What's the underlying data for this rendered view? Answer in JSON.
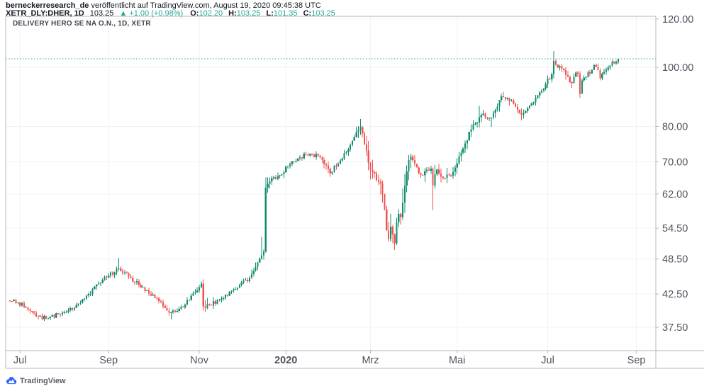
{
  "attribution": {
    "username": "berneckerresearch_de",
    "suffix": " veröffentlicht auf TradingView.com, August 19, 2020 09:45:38 UTC"
  },
  "quote": {
    "symbol": "XETR_DLY:DHER, 1D",
    "last": "103.25",
    "arrow": "▲",
    "change": "+1.00 (+0.98%)",
    "open_label": "O:",
    "open": "102.20",
    "high_label": "H:",
    "high": "103.25",
    "low_label": "L:",
    "low": "101.35",
    "close_label": "C:",
    "close": "103.25"
  },
  "legend": "DELIVERY HERO SE NA O.N., 1D, XETR",
  "footer": {
    "brand": "TradingView"
  },
  "chart_data": {
    "type": "candlestick",
    "title": "DELIVERY HERO SE NA O.N., 1D, XETR",
    "instrument": "DELIVERY HERO SE NA O.N.",
    "exchange": "XETR",
    "interval": "1D",
    "scale": "log",
    "ylim": [
      34.3,
      121.2
    ],
    "grid": true,
    "price_line_value": 103.25,
    "price_ticks": [
      120,
      100,
      80,
      70,
      62,
      54.5,
      48.5,
      42.5,
      37.5
    ],
    "month_ticks": [
      {
        "label": "Jul",
        "day": 5
      },
      {
        "label": "Sep",
        "day": 49
      },
      {
        "label": "Nov",
        "day": 94
      },
      {
        "label": "2020",
        "day": 137,
        "bold": true
      },
      {
        "label": "Mrz",
        "day": 179
      },
      {
        "label": "Mai",
        "day": 222
      },
      {
        "label": "Jul",
        "day": 267
      },
      {
        "label": "Sep",
        "day": 311
      }
    ],
    "colors": {
      "up": "#108c6e",
      "down": "#ef5350",
      "price_line": "#26a69a",
      "grid": "#f0f2f6",
      "border": "#b2b5be",
      "axis_text": "#50535e",
      "logo_blue": "#2962ff"
    },
    "weekly_ohlc": {
      "columns": [
        "week_start",
        "open",
        "high",
        "low",
        "close",
        "day_closes_optional"
      ],
      "rows": [
        [
          "2019-06-24",
          41.5,
          41.8,
          40.9,
          41.2
        ],
        [
          "2019-07-01",
          41.2,
          41.4,
          39.8,
          40.1
        ],
        [
          "2019-07-08",
          40.1,
          40.3,
          38.6,
          39.0
        ],
        [
          "2019-07-15",
          39.0,
          39.5,
          38.4,
          38.8
        ],
        [
          "2019-07-22",
          38.8,
          39.6,
          38.5,
          39.4
        ],
        [
          "2019-07-29",
          39.4,
          40.3,
          39.0,
          40.0
        ],
        [
          "2019-08-05",
          40.0,
          41.2,
          39.7,
          41.0
        ],
        [
          "2019-08-12",
          41.0,
          42.8,
          40.8,
          42.5
        ],
        [
          "2019-08-19",
          42.5,
          44.6,
          42.2,
          44.2
        ],
        [
          "2019-08-26",
          44.2,
          46.0,
          43.8,
          45.6
        ],
        [
          "2019-09-02",
          45.6,
          48.7,
          45.2,
          46.8
        ],
        [
          "2019-09-09",
          46.8,
          47.2,
          45.0,
          45.4
        ],
        [
          "2019-09-16",
          45.4,
          45.8,
          43.6,
          44.0
        ],
        [
          "2019-09-23",
          44.0,
          44.3,
          42.2,
          42.6
        ],
        [
          "2019-09-30",
          42.6,
          43.0,
          41.0,
          41.4
        ],
        [
          "2019-10-07",
          41.4,
          41.6,
          39.2,
          39.6
        ],
        [
          "2019-10-14",
          39.6,
          40.6,
          38.6,
          40.2
        ],
        [
          "2019-10-21",
          40.2,
          42.0,
          40.0,
          41.6
        ],
        [
          "2019-10-28",
          41.6,
          44.0,
          41.4,
          43.6
        ],
        [
          "2019-11-04",
          43.6,
          44.9,
          39.7,
          40.8,
          [
            44.2,
            40.6,
            40.3,
            40.9,
            40.8
          ]
        ],
        [
          "2019-11-11",
          40.8,
          42.0,
          40.2,
          41.6
        ],
        [
          "2019-11-18",
          41.6,
          43.0,
          41.2,
          42.8
        ],
        [
          "2019-11-25",
          42.8,
          44.2,
          42.5,
          44.0
        ],
        [
          "2019-12-02",
          44.0,
          45.5,
          43.7,
          45.2
        ],
        [
          "2019-12-09",
          45.2,
          48.8,
          45.0,
          48.6
        ],
        [
          "2019-12-16",
          48.6,
          66.0,
          48.4,
          65.0,
          [
            49.2,
            49.9,
            63.5,
            64.4,
            65.0
          ]
        ],
        [
          "2019-12-23",
          65.0,
          67.2,
          64.2,
          66.5
        ],
        [
          "2019-12-30",
          66.5,
          69.8,
          65.8,
          69.4
        ],
        [
          "2020-01-06",
          69.4,
          71.8,
          68.9,
          71.2
        ],
        [
          "2020-01-13",
          71.2,
          72.7,
          70.3,
          72.2
        ],
        [
          "2020-01-20",
          72.2,
          72.9,
          70.6,
          71.2
        ],
        [
          "2020-01-27",
          71.2,
          71.5,
          66.2,
          67.0
        ],
        [
          "2020-02-03",
          67.0,
          70.8,
          66.6,
          70.4
        ],
        [
          "2020-02-10",
          70.4,
          75.0,
          70.0,
          74.6
        ],
        [
          "2020-02-17",
          74.6,
          82.3,
          74.2,
          79.8
        ],
        [
          "2020-02-24",
          79.8,
          80.2,
          65.5,
          68.0
        ],
        [
          "2020-03-02",
          68.0,
          70.6,
          61.8,
          64.5
        ],
        [
          "2020-03-09",
          64.5,
          65.2,
          51.8,
          54.8,
          [
            62.0,
            58.5,
            54.0,
            52.3,
            54.8
          ]
        ],
        [
          "2020-03-16",
          54.8,
          58.5,
          50.2,
          56.8,
          [
            53.2,
            51.5,
            55.8,
            57.5,
            56.8
          ]
        ],
        [
          "2020-03-23",
          56.8,
          72.2,
          56.2,
          71.4,
          [
            60.0,
            64.0,
            67.5,
            70.5,
            71.4
          ]
        ],
        [
          "2020-03-30",
          71.4,
          71.9,
          65.9,
          66.6
        ],
        [
          "2020-04-06",
          66.6,
          69.0,
          64.9,
          68.2
        ],
        [
          "2020-04-13",
          68.2,
          69.4,
          58.3,
          66.2,
          [
            64.0,
            66.8,
            68.0,
            67.0,
            66.2
          ]
        ],
        [
          "2020-04-20",
          66.2,
          68.4,
          64.6,
          66.4
        ],
        [
          "2020-04-27",
          66.4,
          73.2,
          65.6,
          72.5
        ],
        [
          "2020-05-04",
          72.5,
          80.6,
          72.0,
          79.2
        ],
        [
          "2020-05-11",
          79.2,
          86.4,
          78.6,
          83.5
        ],
        [
          "2020-05-18",
          83.5,
          85.2,
          79.9,
          82.8
        ],
        [
          "2020-05-25",
          82.8,
          90.6,
          82.2,
          89.6
        ],
        [
          "2020-06-01",
          89.6,
          91.2,
          86.6,
          88.2
        ],
        [
          "2020-06-08",
          88.2,
          88.8,
          81.8,
          83.6
        ],
        [
          "2020-06-15",
          83.6,
          87.6,
          82.4,
          87.2
        ],
        [
          "2020-06-22",
          87.2,
          92.2,
          86.6,
          91.6
        ],
        [
          "2020-06-29",
          91.6,
          98.0,
          90.9,
          97.5
        ],
        [
          "2020-07-06",
          97.5,
          106.3,
          96.0,
          99.5,
          [
            102.5,
            101.0,
            99.8,
            100.5,
            99.5
          ]
        ],
        [
          "2020-07-13",
          99.5,
          100.0,
          92.6,
          94.2
        ],
        [
          "2020-07-20",
          94.2,
          98.6,
          89.2,
          95.2,
          [
            96.5,
            98.0,
            97.5,
            90.5,
            95.2
          ]
        ],
        [
          "2020-07-27",
          95.2,
          99.4,
          94.6,
          99.0
        ],
        [
          "2020-08-03",
          99.0,
          101.5,
          95.2,
          97.6,
          [
            100.8,
            100.2,
            99.0,
            96.0,
            97.6
          ]
        ],
        [
          "2020-08-10",
          97.6,
          102.8,
          97.2,
          102.2
        ],
        [
          "2020-08-17",
          102.2,
          103.25,
          100.9,
          103.25,
          [
            101.5,
            102.2,
            103.25
          ]
        ]
      ]
    },
    "last_candle": {
      "open": 102.2,
      "high": 103.25,
      "low": 101.35,
      "close": 103.25
    }
  }
}
